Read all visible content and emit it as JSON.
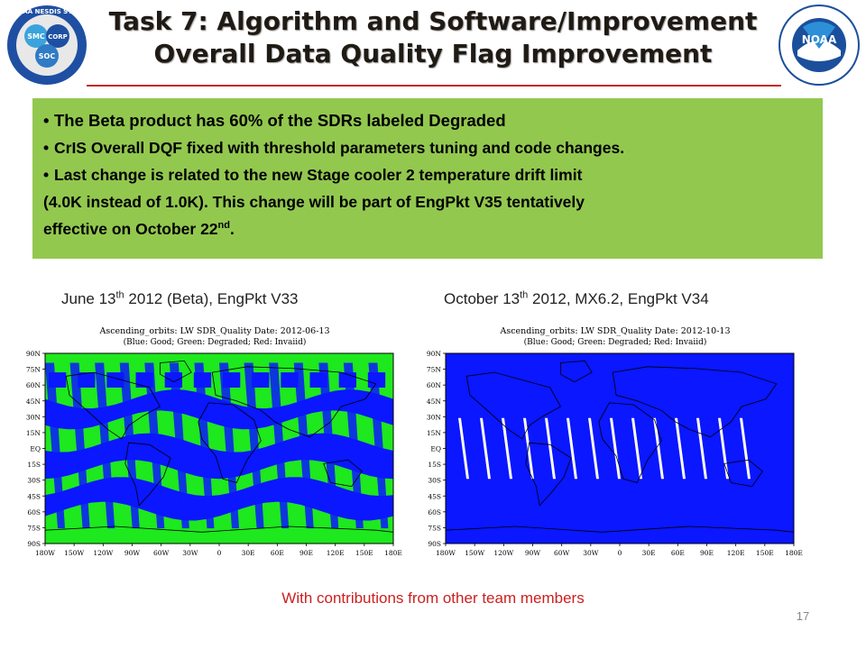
{
  "slide": {
    "title_line1": "Task 7: Algorithm and Software/Improvement",
    "title_line2": "Overall Data Quality Flag Improvement",
    "page_number": "17",
    "contributions": "With contributions from other team members"
  },
  "logos": {
    "left": {
      "ring_text": "NOAA NESDIS STAR",
      "text_smc": "SMC",
      "text_corp": "CORP",
      "text_soc": "SOC",
      "colors": [
        "#1e4fa3",
        "#3ba3dc",
        "#e8e8e8"
      ]
    },
    "right": {
      "center_text": "NOAA",
      "colors": [
        "#1b4f9c",
        "#2c8fd8"
      ]
    }
  },
  "bullets": {
    "b1": "The Beta product has 60% of the SDRs labeled Degraded",
    "b2": "CrIS Overall DQF fixed with threshold parameters tuning and code changes.",
    "b3_line1": "Last change is related to the new Stage cooler 2 temperature drift limit",
    "b3_line2": "(4.0K instead of 1.0K). This change will be part of EngPkt V35 tentatively",
    "b3_line3": "effective on October  22",
    "b3_sup": "nd",
    "b3_end": "."
  },
  "captions": {
    "left_a": "June 13",
    "left_sup": "th",
    "left_b": " 2012 (Beta), EngPkt V33",
    "right_a": "October 13",
    "right_sup": "th",
    "right_b": " 2012, MX6.2, EngPkt V34"
  },
  "maps": {
    "left": {
      "title": "Ascending_orbits: LW SDR_Quality Date: 2012-06-13",
      "subtitle": "(Blue: Good; Green: Degraded; Red: Invaiid)"
    },
    "right": {
      "title": "Ascending_orbits: LW SDR_Quality Date: 2012-10-13",
      "subtitle": "(Blue: Good; Green: Degraded; Red: Invaiid)"
    },
    "lat_ticks": [
      "90N",
      "75N",
      "60N",
      "45N",
      "30N",
      "15N",
      "EQ",
      "15S",
      "30S",
      "45S",
      "60S",
      "75S",
      "90S"
    ],
    "lon_ticks": [
      "180W",
      "150W",
      "120W",
      "90W",
      "60W",
      "30W",
      "0",
      "30E",
      "60E",
      "90E",
      "120E",
      "150E",
      "180E"
    ],
    "colors": {
      "good": "#0a17ff",
      "degraded": "#1ee81e",
      "gap": "#ffffff"
    }
  }
}
